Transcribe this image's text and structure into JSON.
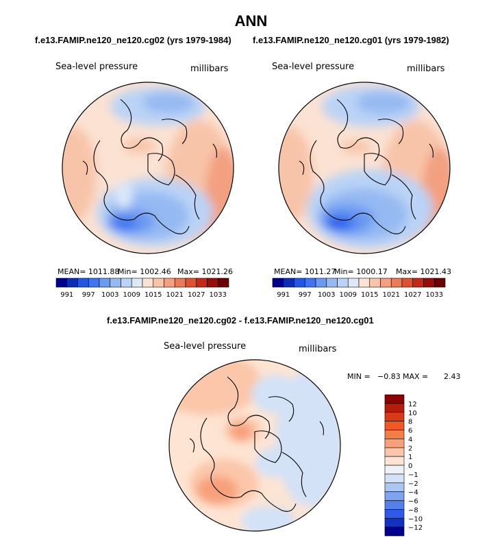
{
  "figure": {
    "title": "ANN",
    "top_subtitle_left": "f.e13.FAMIP.ne120_ne120.cg02 (yrs 1979-1984)",
    "top_subtitle_right": "f.e13.FAMIP.ne120_ne120.cg01 (yrs 1979-1982)",
    "diff_subtitle": "f.e13.FAMIP.ne120_ne120.cg02 - f.e13.FAMIP.ne120_ne120.cg01"
  },
  "chart_data": [
    {
      "type": "heatmap",
      "projection": "north polar stereographic",
      "variable": "Sea-level pressure",
      "units": "millibars",
      "stats": {
        "mean_label": "MEAN= 1011.88",
        "min_label": "Min= 1002.46",
        "max_label": "Max= 1021.26",
        "mean": 1011.88,
        "min": 1002.46,
        "max": 1021.26
      },
      "colorbar": {
        "orientation": "horizontal",
        "levels": [
          991,
          994,
          997,
          1000,
          1003,
          1006,
          1009,
          1012,
          1015,
          1018,
          1021,
          1024,
          1027,
          1030,
          1033
        ],
        "tick_labels": [
          "991",
          "997",
          "1003",
          "1009",
          "1015",
          "1021",
          "1027",
          "1033"
        ],
        "colors": [
          "#00008f",
          "#0b2fb4",
          "#2456e6",
          "#3f74f2",
          "#6a9af2",
          "#95b9f2",
          "#bad3f6",
          "#dde9f9",
          "#fbe2d3",
          "#f8c4a9",
          "#f2a080",
          "#eb7a56",
          "#e0522f",
          "#c52814",
          "#980e06",
          "#6b0000"
        ]
      }
    },
    {
      "type": "heatmap",
      "projection": "north polar stereographic",
      "variable": "Sea-level pressure",
      "units": "millibars",
      "stats": {
        "mean_label": "MEAN= 1011.27",
        "min_label": "Min= 1000.17",
        "max_label": "Max= 1021.43",
        "mean": 1011.27,
        "min": 1000.17,
        "max": 1021.43
      },
      "colorbar": {
        "orientation": "horizontal",
        "levels": [
          991,
          994,
          997,
          1000,
          1003,
          1006,
          1009,
          1012,
          1015,
          1018,
          1021,
          1024,
          1027,
          1030,
          1033
        ],
        "tick_labels": [
          "991",
          "997",
          "1003",
          "1009",
          "1015",
          "1021",
          "1027",
          "1033"
        ],
        "colors": [
          "#00008f",
          "#0b2fb4",
          "#2456e6",
          "#3f74f2",
          "#6a9af2",
          "#95b9f2",
          "#bad3f6",
          "#dde9f9",
          "#fbe2d3",
          "#f8c4a9",
          "#f2a080",
          "#eb7a56",
          "#e0522f",
          "#c52814",
          "#980e06",
          "#6b0000"
        ]
      }
    },
    {
      "type": "heatmap",
      "projection": "north polar stereographic",
      "variable": "Sea-level pressure",
      "units": "millibars",
      "stats": {
        "min_label": "MIN =",
        "min_value": "−0.83",
        "max_label": "MAX =",
        "max_value": "2.43",
        "min": -0.83,
        "max": 2.43
      },
      "colorbar": {
        "orientation": "vertical",
        "tick_labels": [
          "12",
          "10",
          "8",
          "6",
          "4",
          "2",
          "1",
          "0",
          "−1",
          "−2",
          "−4",
          "−6",
          "−8",
          "−10",
          "−12"
        ],
        "colors": [
          "#8c0000",
          "#b51c0a",
          "#d83a16",
          "#ef5a23",
          "#f47c45",
          "#f7a07a",
          "#fbc6a9",
          "#fde4d3",
          "#f0f1f6",
          "#d3e2f7",
          "#a9c7f2",
          "#7fa4ef",
          "#5480ec",
          "#2d5ae6",
          "#1133c4",
          "#00008f"
        ]
      }
    }
  ]
}
